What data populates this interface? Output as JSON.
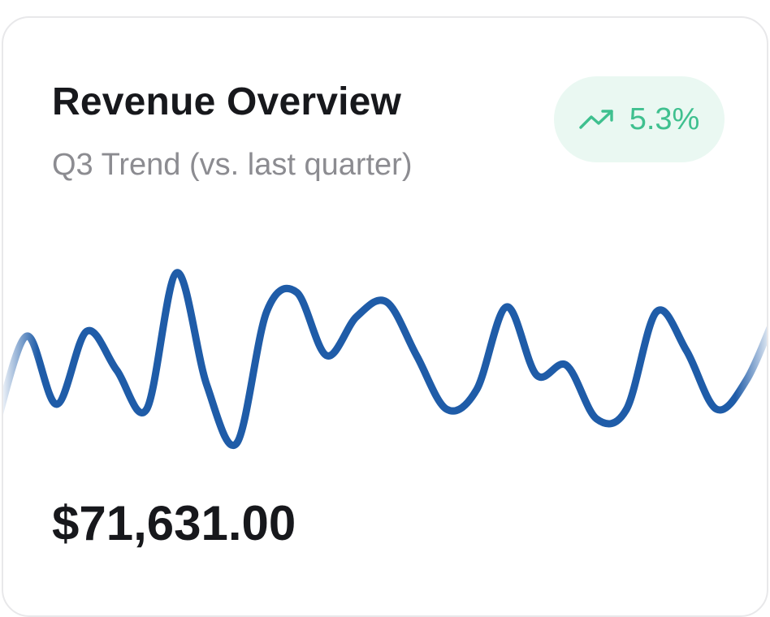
{
  "card": {
    "title": "Revenue Overview",
    "subtitle": "Q3 Trend (vs. last quarter)",
    "amount": "$71,631.00",
    "change_badge": {
      "value": "5.3%",
      "icon": "trend-up-icon",
      "color": "#3fc08f",
      "background": "#eaf8f2"
    }
  },
  "chart_data": {
    "type": "line",
    "title": "",
    "xlabel": "",
    "ylabel": "",
    "grid": false,
    "legend": "none",
    "color": "#1f5ca8",
    "values": [
      0.0,
      18,
      4,
      19,
      11,
      3,
      31,
      8,
      -4,
      23,
      27,
      14,
      22,
      25,
      14,
      3,
      7,
      24,
      10,
      12,
      1,
      3,
      23,
      15,
      3,
      9,
      23
    ],
    "ylim": [
      -10,
      45
    ]
  }
}
